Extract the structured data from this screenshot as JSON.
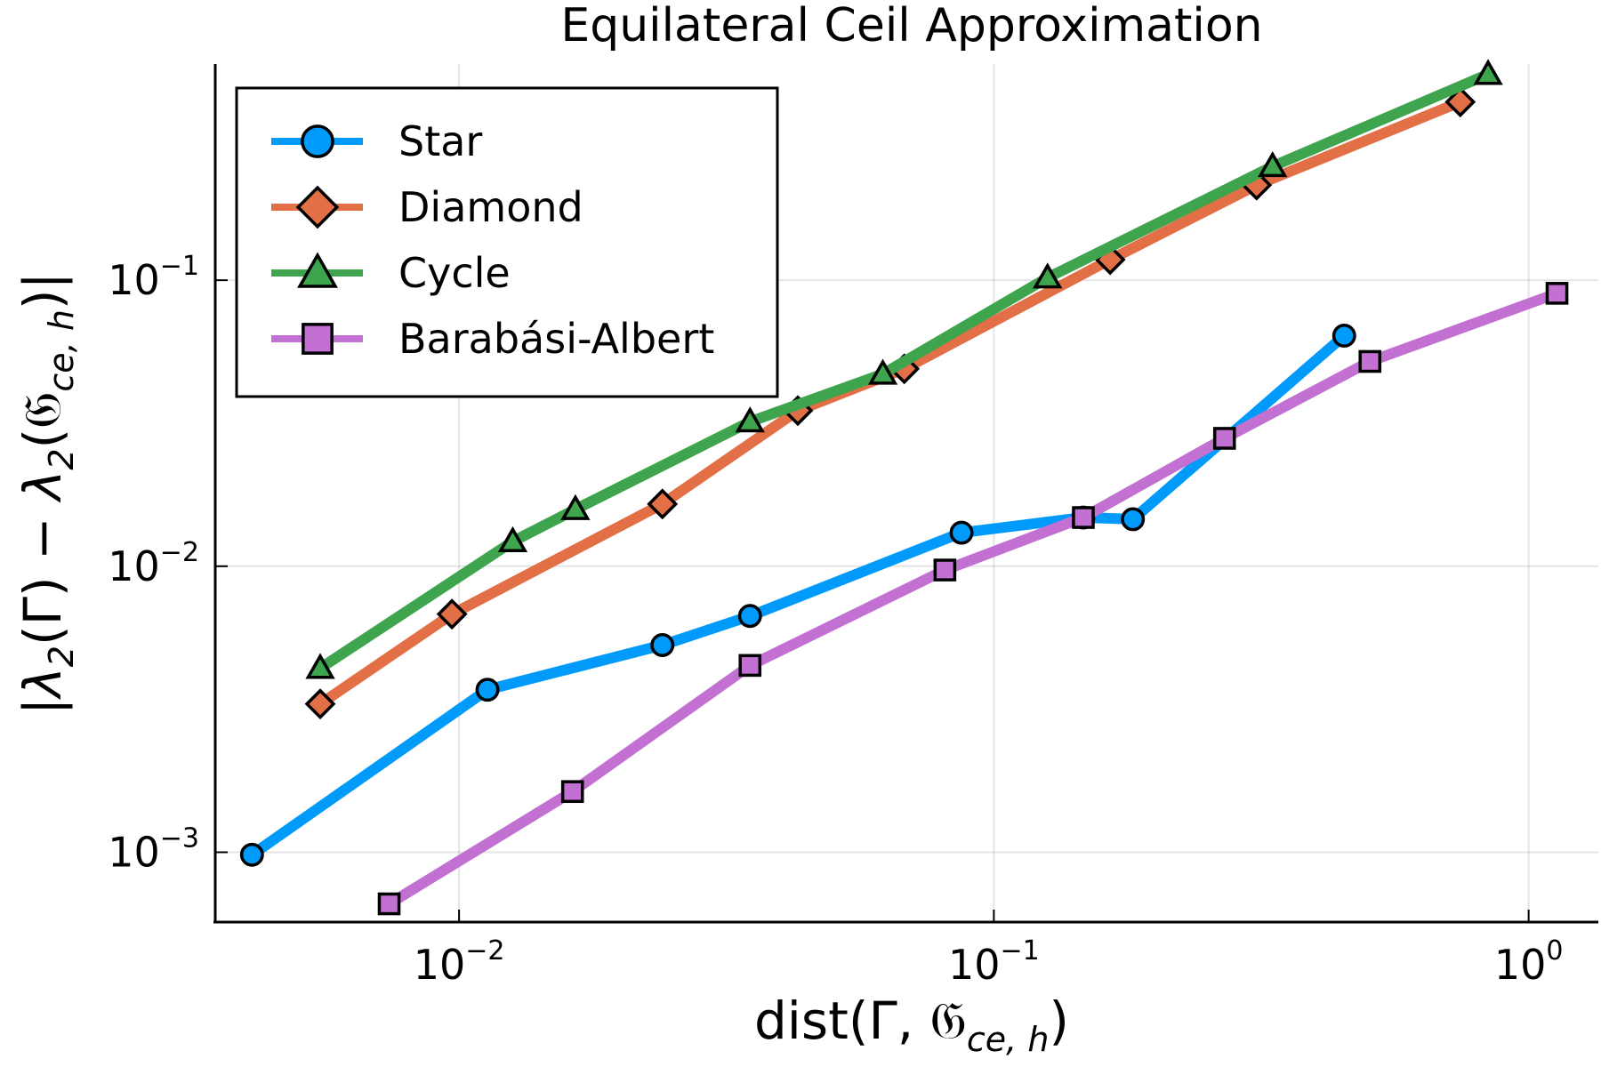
{
  "chart_data": {
    "type": "line",
    "title": "Equilateral Ceil Approximation",
    "xlabel": "dist(Γ, 𝔊ce,h)",
    "ylabel": "|λ2(Γ) − λ2(𝔊ce,h)|",
    "xscale": "log",
    "yscale": "log",
    "xlim": [
      0.0035,
      1.35
    ],
    "ylim": [
      0.00057,
      0.57
    ],
    "grid": true,
    "legend_position": "top-left",
    "x_ticks": [
      {
        "value": 0.01,
        "base": "10",
        "exp": "−2"
      },
      {
        "value": 0.1,
        "base": "10",
        "exp": "−1"
      },
      {
        "value": 1,
        "base": "10",
        "exp": "0"
      }
    ],
    "y_ticks": [
      {
        "value": 0.001,
        "base": "10",
        "exp": "−3"
      },
      {
        "value": 0.01,
        "base": "10",
        "exp": "−2"
      },
      {
        "value": 0.1,
        "base": "10",
        "exp": "−1"
      }
    ],
    "series": [
      {
        "name": "Star",
        "color": "#009AFA",
        "marker": "circle",
        "x": [
          0.0041,
          0.0113,
          0.024,
          0.035,
          0.087,
          0.147,
          0.182,
          0.452
        ],
        "y": [
          0.00098,
          0.0037,
          0.0053,
          0.0067,
          0.0131,
          0.0148,
          0.0146,
          0.064
        ]
      },
      {
        "name": "Diamond",
        "color": "#E26F46",
        "marker": "diamond",
        "x": [
          0.0055,
          0.0097,
          0.024,
          0.043,
          0.068,
          0.165,
          0.31,
          0.745
        ],
        "y": [
          0.0033,
          0.0068,
          0.0165,
          0.035,
          0.049,
          0.118,
          0.215,
          0.42
        ]
      },
      {
        "name": "Cycle",
        "color": "#3EA44E",
        "marker": "triangle",
        "x": [
          0.0055,
          0.0126,
          0.0165,
          0.035,
          0.062,
          0.126,
          0.332,
          0.84
        ],
        "y": [
          0.0044,
          0.0122,
          0.0158,
          0.032,
          0.047,
          0.102,
          0.25,
          0.525
        ]
      },
      {
        "name": "Barabási-Albert",
        "color": "#C271D2",
        "marker": "square",
        "x": [
          0.0074,
          0.0163,
          0.035,
          0.081,
          0.147,
          0.27,
          0.505,
          1.13
        ],
        "y": [
          0.00066,
          0.00163,
          0.0045,
          0.0097,
          0.0148,
          0.028,
          0.052,
          0.09
        ]
      }
    ]
  }
}
